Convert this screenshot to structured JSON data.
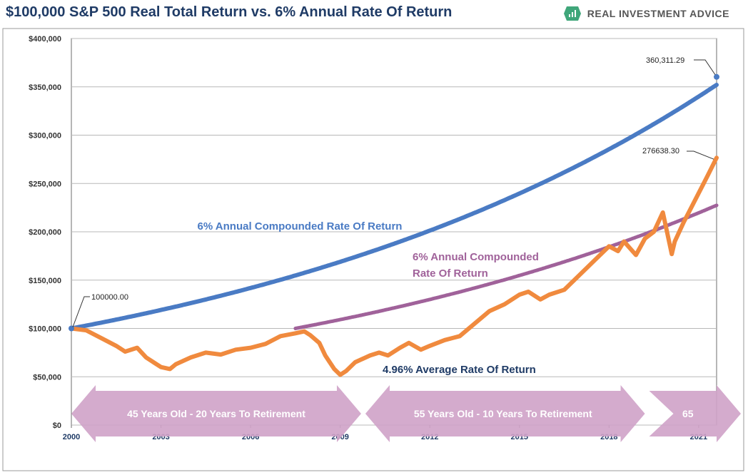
{
  "title": "$100,000 S&P 500 Real Total Return vs. 6% Annual Rate Of Return",
  "brand": {
    "name": "REAL INVESTMENT ADVICE",
    "logo_icon": "ria-chart-logo-icon"
  },
  "colors": {
    "blue": "#4a7bc4",
    "orange": "#f08a3e",
    "purple": "#a0629a",
    "arrow": "#cfa2c8",
    "grid": "#b8b8b8",
    "navy": "#1f3b66"
  },
  "chart_data": {
    "type": "line",
    "title": "$100,000 S&P 500 Real Total Return vs. 6% Annual Rate Of Return",
    "xlim": [
      2000,
      2021.6
    ],
    "ylim": [
      0,
      400000
    ],
    "grid": true,
    "x_ticks": [
      "2000",
      "2003",
      "2006",
      "2009",
      "2012",
      "2015",
      "2018",
      "2021"
    ],
    "y_ticks": [
      "$0",
      "$50,000",
      "$100,000",
      "$150,000",
      "$200,000",
      "$250,000",
      "$300,000",
      "$350,000",
      "$400,000"
    ],
    "series": [
      {
        "label": "6% Annual Compounded Rate Of Return",
        "color": "#4a7bc4",
        "start_year": 2000,
        "end_year": 2021.6,
        "start_value": 100000,
        "end_value": 360311.29,
        "rate": 0.06
      },
      {
        "label": "6% Annual Compounded Rate Of Return",
        "color": "#a0629a",
        "start_year": 2007.5,
        "end_year": 2021.6,
        "start_value": 100000,
        "end_value": 228000,
        "rate": 0.06
      },
      {
        "label": "4.96% Average Rate Of Return",
        "color": "#f08a3e",
        "x": [
          2000,
          2000.5,
          2001,
          2001.5,
          2001.8,
          2002.2,
          2002.5,
          2002.8,
          2003.0,
          2003.3,
          2003.5,
          2004,
          2004.5,
          2005,
          2005.5,
          2006,
          2006.5,
          2007,
          2007.5,
          2007.8,
          2008,
          2008.3,
          2008.5,
          2008.8,
          2009.0,
          2009.2,
          2009.5,
          2010,
          2010.3,
          2010.6,
          2011,
          2011.3,
          2011.7,
          2012,
          2012.5,
          2013,
          2013.5,
          2014,
          2014.5,
          2015,
          2015.3,
          2015.7,
          2016,
          2016.5,
          2017,
          2017.5,
          2018,
          2018.3,
          2018.5,
          2018.9,
          2019.2,
          2019.5,
          2019.8,
          2020.1,
          2020.2,
          2020.5,
          2020.8,
          2021.0,
          2021.3,
          2021.6
        ],
        "values": [
          100000,
          98000,
          90000,
          82000,
          76000,
          80000,
          70000,
          64000,
          60000,
          58000,
          63000,
          70000,
          75000,
          73000,
          78000,
          80000,
          84000,
          92000,
          95000,
          97000,
          93000,
          85000,
          72000,
          58000,
          52000,
          56000,
          65000,
          72000,
          75000,
          72000,
          80000,
          85000,
          78000,
          82000,
          88000,
          92000,
          105000,
          118000,
          125000,
          135000,
          138000,
          130000,
          135000,
          140000,
          155000,
          170000,
          185000,
          180000,
          190000,
          176000,
          193000,
          200000,
          220000,
          177000,
          190000,
          210000,
          228000,
          240000,
          258000,
          276638.3
        ]
      }
    ],
    "annotations": [
      {
        "text": "100000.00",
        "x": 2000,
        "value": 100000
      },
      {
        "text": "360,311.29",
        "x": 2021.6,
        "value": 360311.29
      },
      {
        "text": "276638.30",
        "x": 2021.6,
        "value": 276638.3
      }
    ],
    "labels": {
      "blue_label": "6% Annual Compounded Rate Of Return",
      "purple_label_1": "6% Annual Compounded",
      "purple_label_2": "Rate Of Return",
      "orange_label": "4.96% Average Rate Of Return"
    },
    "age_bands": [
      {
        "text": "45 Years Old  - 20 Years To Retirement",
        "start_year": 2000,
        "end_year": 2009.7
      },
      {
        "text": "55 Years Old  - 10 Years To Retirement",
        "start_year": 2009.7,
        "end_year": 2019.2
      },
      {
        "text": "65",
        "start_year": 2019.2,
        "end_year": 2021.6
      }
    ]
  }
}
